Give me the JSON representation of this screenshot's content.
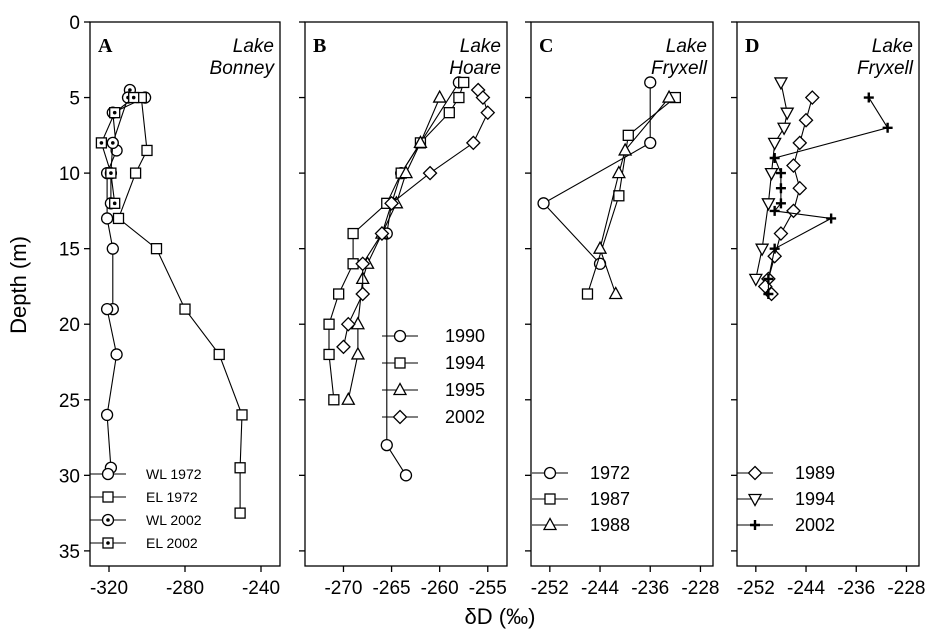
{
  "chart_data": [
    {
      "panel": "A",
      "title": [
        "Lake",
        "Bonney"
      ],
      "type": "line",
      "xlim": [
        -330,
        -230
      ],
      "xticks": [
        -320,
        -280,
        -240
      ],
      "legend": "bottom-left",
      "series": [
        {
          "name": "WL 1972",
          "marker": "circle",
          "x": [
            -301,
            -318,
            -316,
            -321,
            -321,
            -318,
            -318,
            -321,
            -316,
            -321,
            -319
          ],
          "y": [
            5,
            6,
            8.5,
            10,
            13,
            15,
            19,
            19,
            22,
            26,
            29.5
          ]
        },
        {
          "name": "EL 1972",
          "marker": "square",
          "x": [
            -303,
            -300,
            -306,
            -315,
            -295,
            -280,
            -262,
            -250,
            -251,
            -251
          ],
          "y": [
            5,
            8.5,
            10,
            13,
            15,
            19,
            22,
            26,
            29.5,
            32.5
          ]
        },
        {
          "name": "WL 2002",
          "marker": "circle-dot",
          "x": [
            -309,
            -310,
            -318,
            -319,
            -319
          ],
          "y": [
            4.5,
            5,
            8,
            10,
            12
          ]
        },
        {
          "name": "EL 2002",
          "marker": "square-dot",
          "x": [
            -307,
            -317,
            -324,
            -319,
            -317
          ],
          "y": [
            5,
            6,
            8,
            10,
            12
          ]
        }
      ]
    },
    {
      "panel": "B",
      "title": [
        "Lake",
        "Hoare"
      ],
      "type": "line",
      "xlim": [
        -274,
        -253
      ],
      "xticks": [
        -270,
        -265,
        -260,
        -255
      ],
      "legend": "right",
      "series": [
        {
          "name": "1990",
          "marker": "circle",
          "x": [
            -258,
            -264,
            -265,
            -265.5,
            -265.5,
            -263.5
          ],
          "y": [
            4,
            10,
            12,
            14,
            28,
            30
          ]
        },
        {
          "name": "1994",
          "marker": "square",
          "x": [
            -257.5,
            -258,
            -259,
            -262,
            -264,
            -265.5,
            -269,
            -269,
            -270.5,
            -271.5,
            -271.5,
            -271
          ],
          "y": [
            4,
            5,
            6,
            8,
            10,
            12,
            14,
            16,
            18,
            20,
            22,
            25
          ]
        },
        {
          "name": "1995",
          "marker": "triangle-up",
          "x": [
            -260,
            -262,
            -263.5,
            -264.5,
            -266,
            -267.5,
            -268,
            -268.5,
            -268.5,
            -269.5
          ],
          "y": [
            5,
            8,
            10,
            12,
            14,
            16,
            17,
            20,
            22,
            25
          ]
        },
        {
          "name": "2002",
          "marker": "diamond",
          "x": [
            -256,
            -255.5,
            -255,
            -256.5,
            -261,
            -265,
            -266,
            -268,
            -268,
            -269.5,
            -270
          ],
          "y": [
            4.5,
            5,
            6,
            8,
            10,
            12,
            14,
            16,
            18,
            20,
            21.5
          ]
        }
      ]
    },
    {
      "panel": "C",
      "title": [
        "Lake",
        "Fryxell"
      ],
      "type": "line",
      "xlim": [
        -255,
        -226
      ],
      "xticks": [
        -252,
        -244,
        -236,
        -228
      ],
      "legend": "bottom-left",
      "series": [
        {
          "name": "1972",
          "marker": "circle",
          "x": [
            -236,
            -236,
            -253,
            -244
          ],
          "y": [
            4,
            8,
            12,
            16
          ]
        },
        {
          "name": "1987",
          "marker": "square",
          "x": [
            -232,
            -239.5,
            -241,
            -246
          ],
          "y": [
            5,
            7.5,
            11.5,
            18
          ]
        },
        {
          "name": "1988",
          "marker": "triangle-up",
          "x": [
            -233,
            -240,
            -241,
            -244,
            -241.5
          ],
          "y": [
            5,
            8.5,
            10,
            15,
            18
          ]
        }
      ]
    },
    {
      "panel": "D",
      "title": [
        "Lake",
        "Fryxell"
      ],
      "type": "line",
      "xlim": [
        -255,
        -226
      ],
      "xticks": [
        -252,
        -244,
        -236,
        -228
      ],
      "legend": "bottom-left",
      "series": [
        {
          "name": "1989",
          "marker": "diamond",
          "x": [
            -243,
            -244,
            -245,
            -246,
            -245,
            -246,
            -248,
            -249,
            -250,
            -250.5,
            -249.5
          ],
          "y": [
            5,
            6.5,
            8,
            9.5,
            11,
            12.5,
            14,
            15.5,
            17,
            17.5,
            18
          ]
        },
        {
          "name": "1994",
          "marker": "triangle-down",
          "x": [
            -248,
            -247,
            -247.5,
            -249,
            -249.5,
            -250,
            -251,
            -252
          ],
          "y": [
            4,
            6,
            7,
            8,
            10,
            12,
            15,
            17
          ]
        },
        {
          "name": "2002",
          "marker": "plus",
          "x": [
            -234,
            -231,
            -249,
            -248,
            -248,
            -248,
            -249,
            -240,
            -249,
            -250,
            -250
          ],
          "y": [
            5,
            7,
            9,
            10,
            11,
            12,
            12.5,
            13,
            15,
            17,
            18
          ]
        }
      ]
    }
  ],
  "shared_axes": {
    "ylabel": "Depth (m)",
    "xlabel": "δD (‰)",
    "ylim": [
      0,
      36
    ],
    "yticks": [
      0,
      5,
      10,
      15,
      20,
      25,
      30,
      35
    ]
  }
}
